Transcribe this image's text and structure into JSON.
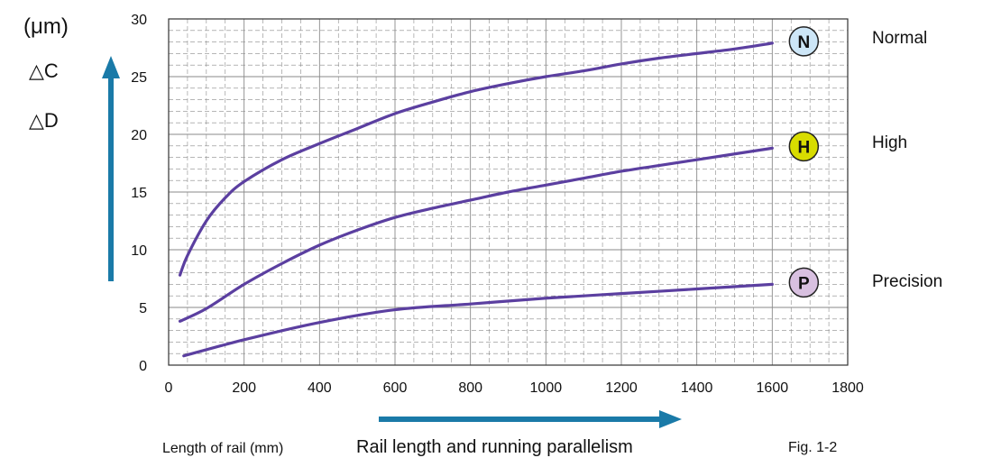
{
  "chart_data": {
    "type": "line",
    "xlabel": "Length of rail (mm)",
    "caption": "Rail length and running parallelism",
    "figure": "Fig. 1-2",
    "unit": "(μm)",
    "ylabel_lines": [
      "△C",
      "△D"
    ],
    "xlim": [
      0,
      1800
    ],
    "ylim": [
      0,
      30
    ],
    "xticks": [
      "0",
      "200",
      "400",
      "600",
      "800",
      "1000",
      "1200",
      "1400",
      "1600",
      "1800"
    ],
    "yticks": [
      "0",
      "5",
      "10",
      "15",
      "20",
      "25",
      "30"
    ],
    "grid": true,
    "series": [
      {
        "marker": "N",
        "name": "Normal",
        "color": "#5b3fa0",
        "marker_color": "#cde6f7",
        "x": [
          30,
          50,
          100,
          150,
          200,
          300,
          400,
          500,
          600,
          700,
          800,
          900,
          1000,
          1100,
          1200,
          1300,
          1400,
          1500,
          1600
        ],
        "y": [
          7.8,
          9.5,
          12.5,
          14.5,
          15.9,
          17.8,
          19.2,
          20.5,
          21.8,
          22.8,
          23.7,
          24.4,
          25.0,
          25.5,
          26.1,
          26.6,
          27.0,
          27.4,
          27.9
        ]
      },
      {
        "marker": "H",
        "name": "High",
        "color": "#5b3fa0",
        "marker_color": "#d8dc00",
        "x": [
          30,
          100,
          200,
          300,
          400,
          500,
          600,
          700,
          800,
          900,
          1000,
          1100,
          1200,
          1300,
          1400,
          1500,
          1600
        ],
        "y": [
          3.8,
          4.9,
          7.0,
          8.8,
          10.4,
          11.7,
          12.8,
          13.6,
          14.3,
          15.0,
          15.6,
          16.2,
          16.8,
          17.3,
          17.8,
          18.3,
          18.8
        ]
      },
      {
        "marker": "P",
        "name": "Precision",
        "color": "#5b3fa0",
        "marker_color": "#d8c0e0",
        "x": [
          40,
          200,
          400,
          600,
          800,
          1000,
          1200,
          1400,
          1600
        ],
        "y": [
          0.8,
          2.2,
          3.7,
          4.8,
          5.3,
          5.8,
          6.2,
          6.6,
          7.0
        ]
      }
    ]
  },
  "colors": {
    "grid": "#8a8a8a",
    "arrow": "#1a7aa8",
    "line": "#5b3fa0"
  }
}
